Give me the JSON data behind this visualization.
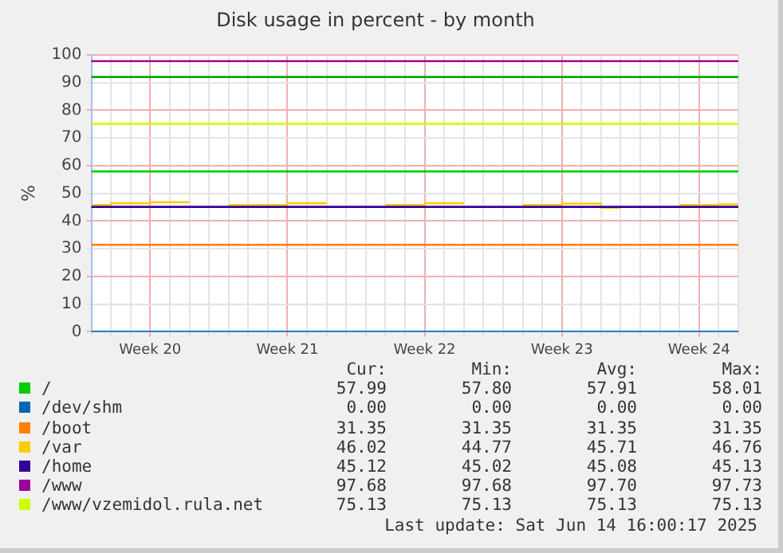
{
  "chart_data": {
    "type": "line",
    "title": "Disk usage in percent - by month",
    "ylabel": "%",
    "categories": [
      null,
      null,
      null,
      "Week 20",
      null,
      null,
      null,
      null,
      null,
      null,
      "Week 21",
      null,
      null,
      null,
      null,
      null,
      null,
      "Week 22",
      null,
      null,
      null,
      null,
      null,
      null,
      "Week 23",
      null,
      null,
      null,
      null,
      null,
      null,
      "Week 24",
      null,
      null
    ],
    "ylim": [
      0,
      100
    ],
    "yticks": [
      0,
      10,
      20,
      30,
      40,
      50,
      60,
      70,
      80,
      90,
      100
    ],
    "grid": true,
    "legend": "bottom",
    "marker": "none",
    "line_style": "solid",
    "series": [
      {
        "name": "/",
        "color": "#00cc00",
        "values": [
          57.9,
          57.9,
          57.9,
          57.9,
          57.9,
          57.9,
          57.9,
          57.9,
          57.9,
          57.9,
          57.9,
          57.9,
          57.9,
          57.9,
          57.9,
          57.9,
          57.9,
          57.9,
          57.9,
          57.9,
          57.9,
          57.9,
          57.9,
          57.9,
          57.9,
          57.9,
          57.9,
          57.9,
          57.9,
          57.9,
          57.9,
          57.9,
          57.9,
          57.9
        ]
      },
      {
        "name": "/dev/shm",
        "color": "#0066b3",
        "values": [
          0,
          0,
          0,
          0,
          0,
          0,
          0,
          0,
          0,
          0,
          0,
          0,
          0,
          0,
          0,
          0,
          0,
          0,
          0,
          0,
          0,
          0,
          0,
          0,
          0,
          0,
          0,
          0,
          0,
          0,
          0,
          0,
          0,
          0
        ]
      },
      {
        "name": "/boot",
        "color": "#ff8000",
        "values": [
          31.4,
          31.4,
          31.4,
          31.4,
          31.4,
          31.4,
          31.4,
          31.4,
          31.4,
          31.4,
          31.4,
          31.4,
          31.4,
          31.4,
          31.4,
          31.4,
          31.4,
          31.4,
          31.4,
          31.4,
          31.4,
          31.4,
          31.4,
          31.4,
          31.4,
          31.4,
          31.4,
          31.4,
          31.4,
          31.4,
          31.4,
          31.4,
          31.4,
          31.4
        ]
      },
      {
        "name": "/var",
        "color": "#ffcc00",
        "type": "step",
        "values": [
          45.8,
          45.8,
          46.4,
          46.4,
          46.8,
          46.8,
          null,
          45.8,
          45.8,
          45.8,
          45.8,
          46.4,
          46.4,
          null,
          null,
          45.8,
          45.8,
          45.8,
          46.4,
          46.4,
          null,
          null,
          45.8,
          45.8,
          45.8,
          46.3,
          46.3,
          44.8,
          null,
          null,
          45.8,
          45.8,
          45.8,
          46.0
        ]
      },
      {
        "name": "/home",
        "color": "#330099",
        "values": [
          45.1,
          45.1,
          45.1,
          45.1,
          45.1,
          45.1,
          45.1,
          45.1,
          45.1,
          45.1,
          45.1,
          45.1,
          45.1,
          45.1,
          45.1,
          45.1,
          45.1,
          45.1,
          45.1,
          45.1,
          45.1,
          45.1,
          45.1,
          45.1,
          45.1,
          45.1,
          45.1,
          45.1,
          45.1,
          45.1,
          45.1,
          45.1,
          45.1,
          45.1
        ]
      },
      {
        "name": "/www",
        "color": "#990099",
        "values": [
          97.7,
          97.7,
          97.7,
          97.7,
          97.7,
          97.7,
          97.7,
          97.7,
          97.7,
          97.7,
          97.7,
          97.7,
          97.7,
          97.7,
          97.7,
          97.7,
          97.7,
          97.7,
          97.7,
          97.7,
          97.7,
          97.7,
          97.7,
          97.7,
          97.7,
          97.7,
          97.7,
          97.7,
          97.7,
          97.7,
          97.7,
          97.7,
          97.7,
          97.7
        ]
      },
      {
        "name": "/www/vzemidol.rula.net",
        "color": "#ccff00",
        "values": [
          75.1,
          75.1,
          75.1,
          75.1,
          75.1,
          75.1,
          75.1,
          75.1,
          75.1,
          75.1,
          75.1,
          75.1,
          75.1,
          75.1,
          75.1,
          75.1,
          75.1,
          75.1,
          75.1,
          75.1,
          75.1,
          75.1,
          75.1,
          75.1,
          75.1,
          75.1,
          75.1,
          75.1,
          75.1,
          75.1,
          75.1,
          75.1,
          75.1,
          75.1
        ]
      }
    ],
    "ref_lines": [
      {
        "axis": "y",
        "value": 92,
        "color": "#00aa00"
      }
    ],
    "annotations": [
      "Cur:",
      "Min:",
      "Avg:",
      "Max:",
      "57.99",
      "57.80",
      "57.91",
      "58.01",
      "0.00",
      "0.00",
      "0.00",
      "0.00",
      "31.35",
      "31.35",
      "31.35",
      "31.35",
      "46.02",
      "44.77",
      "45.71",
      "46.76",
      "45.12",
      "45.02",
      "45.08",
      "45.13",
      "97.68",
      "97.68",
      "97.70",
      "97.73",
      "75.13",
      "75.13",
      "75.13",
      "75.13",
      "Last update: Sat Jun 14 16:00:17 2025"
    ]
  }
}
